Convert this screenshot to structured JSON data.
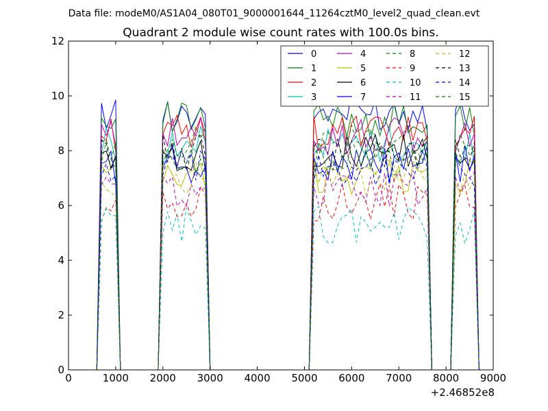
{
  "suptitle": "Data file: modeM0/AS1A04_080T01_9000001644_11264cztM0_level2_quad_clean.evt",
  "chart_data": {
    "type": "line",
    "title": "Quadrant 2 module wise count rates with 100.0s bins.",
    "xlabel": "",
    "ylabel": "",
    "x_offset_label": "+2.46852e8",
    "xlim": [
      0,
      9000
    ],
    "ylim": [
      0,
      12
    ],
    "xticks": [
      "0",
      "1000",
      "2000",
      "3000",
      "4000",
      "5000",
      "6000",
      "7000",
      "8000",
      "9000"
    ],
    "yticks": [
      "0",
      "2",
      "4",
      "6",
      "8",
      "10",
      "12"
    ],
    "grid": false,
    "legend_position": "top-right",
    "segments": [
      {
        "x": [
          600,
          700,
          800,
          900,
          1000,
          1100
        ],
        "level": "high"
      },
      {
        "x": [
          1100,
          1800
        ],
        "level": "zero"
      },
      {
        "x": [
          1900,
          2000,
          2100,
          2200,
          2300,
          2400,
          2500,
          2600,
          2700,
          2800,
          2900,
          3000
        ],
        "level": "high"
      },
      {
        "x": [
          3000,
          5000
        ],
        "level": "zero"
      },
      {
        "x": [
          5100,
          5200,
          5300,
          5400,
          5500,
          5600,
          5700,
          5800,
          5900,
          6000,
          6100,
          6200,
          6300,
          6400,
          6500,
          6600,
          6700,
          6800,
          6900,
          7000,
          7100,
          7200,
          7300,
          7400,
          7500,
          7600,
          7700
        ],
        "level": "high"
      },
      {
        "x": [
          7700,
          8000
        ],
        "level": "zero"
      },
      {
        "x": [
          8100,
          8200,
          8300,
          8400,
          8500,
          8600,
          8700
        ],
        "level": "high"
      }
    ],
    "series": [
      {
        "name": "0",
        "color": "#0000ff",
        "dash": "solid",
        "base": 9.4
      },
      {
        "name": "1",
        "color": "#008000",
        "dash": "solid",
        "base": 9.1
      },
      {
        "name": "2",
        "color": "#ff0000",
        "dash": "solid",
        "base": 8.6
      },
      {
        "name": "3",
        "color": "#00bfbf",
        "dash": "solid",
        "base": 8.2
      },
      {
        "name": "4",
        "color": "#bf00bf",
        "dash": "solid",
        "base": 8.5
      },
      {
        "name": "5",
        "color": "#bfbf00",
        "dash": "solid",
        "base": 7.1
      },
      {
        "name": "6",
        "color": "#000000",
        "dash": "solid",
        "base": 7.9
      },
      {
        "name": "7",
        "color": "#0000ff",
        "dash": "solid",
        "base": 7.5
      },
      {
        "name": "8",
        "color": "#008000",
        "dash": "dashed",
        "base": 8.3
      },
      {
        "name": "9",
        "color": "#ff0000",
        "dash": "dashed",
        "base": 6.1
      },
      {
        "name": "10",
        "color": "#00bfbf",
        "dash": "dashed",
        "base": 5.3
      },
      {
        "name": "11",
        "color": "#bf00bf",
        "dash": "dashed",
        "base": 6.6
      },
      {
        "name": "12",
        "color": "#bfbf00",
        "dash": "dashed",
        "base": 7.0
      },
      {
        "name": "13",
        "color": "#000000",
        "dash": "dashed",
        "base": 7.9
      },
      {
        "name": "14",
        "color": "#0000ff",
        "dash": "dashed",
        "base": 7.3
      },
      {
        "name": "15",
        "color": "#008000",
        "dash": "dashed",
        "base": 7.7
      }
    ]
  }
}
